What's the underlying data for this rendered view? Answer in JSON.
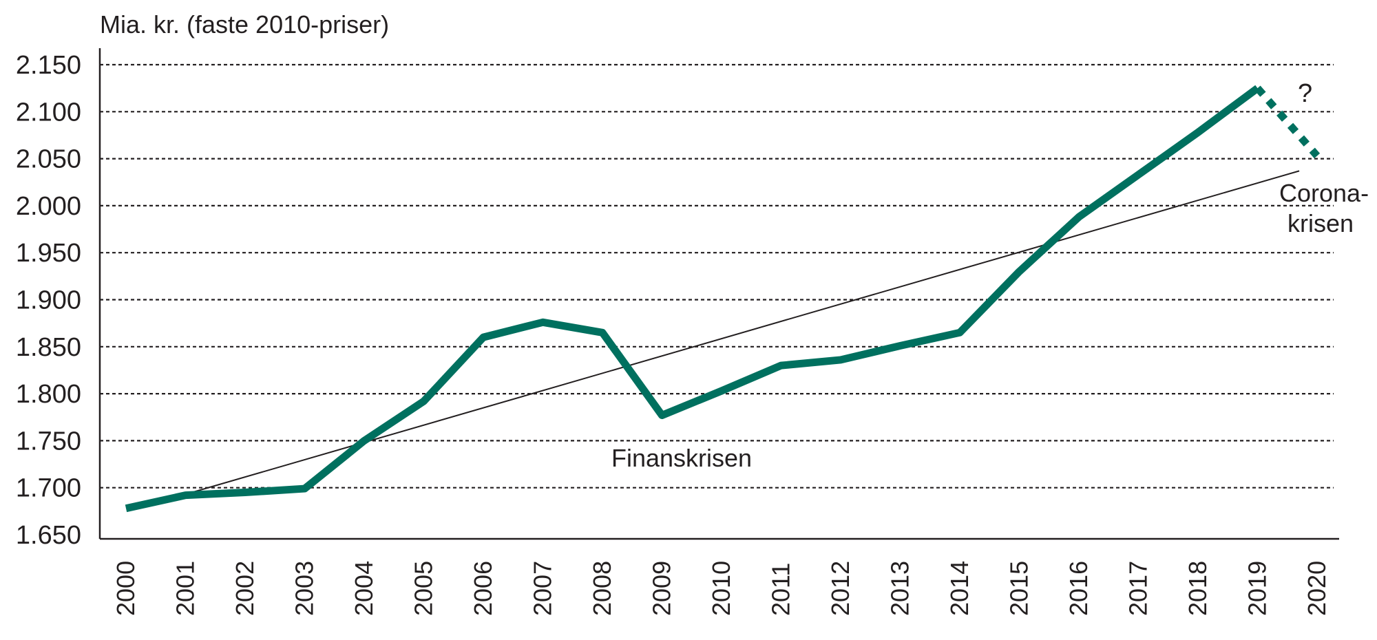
{
  "chart_data": {
    "type": "line",
    "title": "",
    "ylabel": "Mia. kr. (faste 2010-priser)",
    "xlabel": "",
    "ylim": [
      1650,
      2150
    ],
    "yticks": [
      1650,
      1700,
      1750,
      1800,
      1850,
      1900,
      1950,
      2000,
      2050,
      2100,
      2150
    ],
    "ytick_labels": [
      "1.650",
      "1.700",
      "1.750",
      "1.800",
      "1.850",
      "1.900",
      "1.950",
      "2.000",
      "2.050",
      "2.100",
      "2.150"
    ],
    "categories": [
      "2000",
      "2001",
      "2002",
      "2003",
      "2004",
      "2005",
      "2006",
      "2007",
      "2008",
      "2009",
      "2010",
      "2011",
      "2012",
      "2013",
      "2014",
      "2015",
      "2016",
      "2017",
      "2018",
      "2019",
      "2020"
    ],
    "grid": "horizontal dotted",
    "series": [
      {
        "values": [
          1678,
          1692,
          1695,
          1699,
          1750,
          1792,
          1860,
          1876,
          1865,
          1777,
          1803,
          1830,
          1836,
          1851,
          1865,
          1930,
          1988,
          2033,
          2078,
          2125,
          null
        ],
        "color": "#00705f",
        "style": "solid"
      },
      {
        "values": [
          null,
          null,
          null,
          null,
          null,
          null,
          null,
          null,
          null,
          null,
          null,
          null,
          null,
          null,
          null,
          null,
          null,
          null,
          null,
          2125,
          2053
        ],
        "color": "#00705f",
        "style": "dotted"
      },
      {
        "trend_from": [
          2001,
          1693
        ],
        "trend_to": [
          2019.7,
          2037
        ],
        "color": "#231f20",
        "style": "thin"
      }
    ],
    "annotations": [
      {
        "text": "Finanskrisen"
      },
      {
        "text": "Corona-",
        "text2": "krisen"
      },
      {
        "text": "?"
      }
    ]
  }
}
